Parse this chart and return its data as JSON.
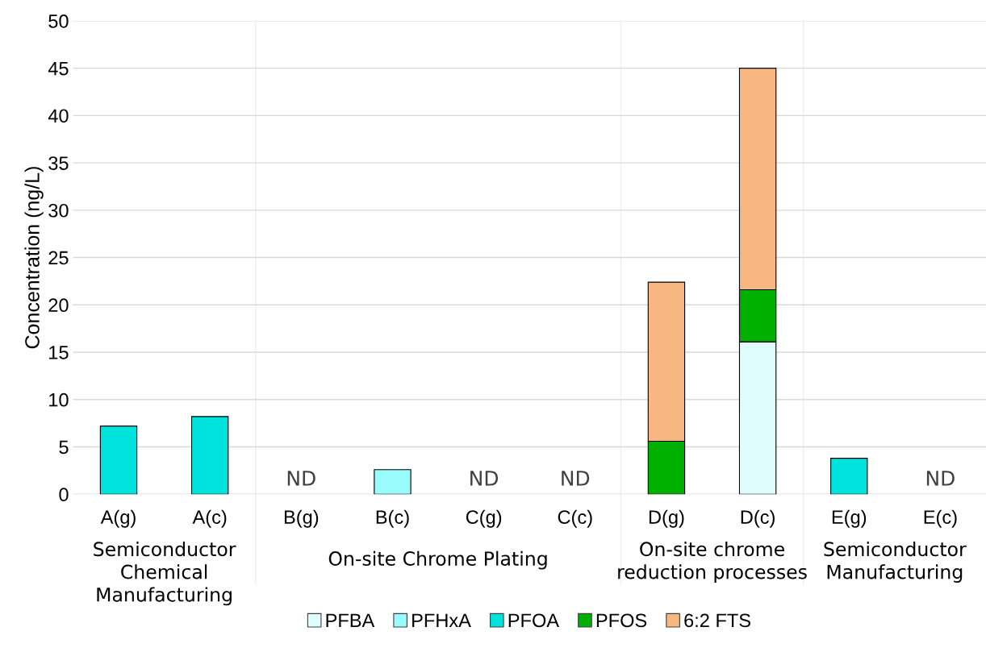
{
  "chart_data": {
    "type": "bar",
    "stacked": true,
    "ylabel": "Concentration (ng/L)",
    "categories": [
      "A(g)",
      "A(c)",
      "B(g)",
      "B(c)",
      "C(g)",
      "C(c)",
      "D(g)",
      "D(c)",
      "E(g)",
      "E(c)"
    ],
    "series": [
      {
        "name": "PFBA",
        "color": "#e0fcfc",
        "values": [
          null,
          null,
          null,
          null,
          null,
          null,
          null,
          16.1,
          null,
          null
        ]
      },
      {
        "name": "PFHxA",
        "color": "#99fbfb",
        "values": [
          null,
          null,
          null,
          2.6,
          null,
          null,
          null,
          null,
          null,
          null
        ]
      },
      {
        "name": "PFOA",
        "color": "#00e3dd",
        "values": [
          7.2,
          8.2,
          null,
          null,
          null,
          null,
          null,
          null,
          3.8,
          null
        ]
      },
      {
        "name": "PFOS",
        "color": "#00b000",
        "values": [
          null,
          null,
          null,
          null,
          null,
          null,
          5.6,
          5.5,
          null,
          null
        ]
      },
      {
        "name": "6:2 FTS",
        "color": "#f8b780",
        "values": [
          null,
          null,
          null,
          null,
          null,
          null,
          16.8,
          23.4,
          null,
          null
        ]
      }
    ],
    "ylim": [
      0,
      50
    ],
    "yticks": [
      0,
      5,
      10,
      15,
      20,
      25,
      30,
      35,
      40,
      45,
      50
    ],
    "grid": "y",
    "legend": "bottom",
    "annotations": [
      "ND",
      "ND",
      "ND",
      "ND",
      "Semiconductor\nChemical\nManufacturing",
      "On-site Chrome Plating",
      "On-site chrome\nreduction processes",
      "Semiconductor\nManufacturing"
    ]
  }
}
